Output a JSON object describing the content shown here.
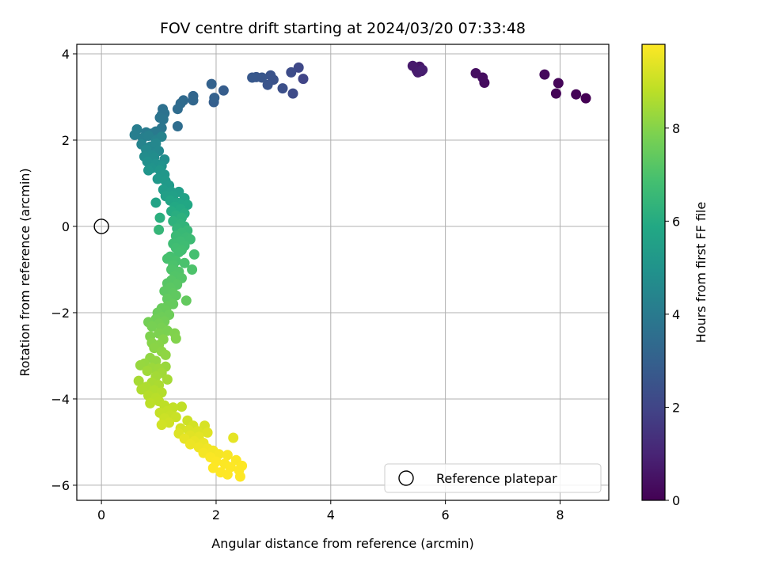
{
  "chart_data": {
    "type": "scatter",
    "title": "FOV centre drift starting at 2024/03/20 07:33:48",
    "xlabel": "Angular distance from reference (arcmin)",
    "ylabel": "Rotation from reference (arcmin)",
    "xlim": [
      -0.43,
      8.85
    ],
    "ylim": [
      -6.35,
      4.22
    ],
    "xticks": [
      0,
      2,
      4,
      6,
      8
    ],
    "yticks": [
      -6,
      -4,
      -2,
      0,
      2,
      4
    ],
    "grid": true,
    "colormap": "viridis",
    "colorbar": {
      "label": "Hours from first FF file",
      "range": [
        0,
        9.8
      ],
      "ticks": [
        0,
        2,
        4,
        6,
        8
      ]
    },
    "reference": {
      "label": "Reference platepar",
      "x": 0,
      "y": 0,
      "marker": "open-circle"
    },
    "legend": {
      "position": "lower-right",
      "entries": [
        "Reference platepar"
      ]
    },
    "points": [
      [
        8.45,
        2.97,
        0.0
      ],
      [
        8.28,
        3.06,
        0.05
      ],
      [
        7.93,
        3.08,
        0.1
      ],
      [
        7.97,
        3.32,
        0.15
      ],
      [
        7.73,
        3.52,
        0.2
      ],
      [
        6.68,
        3.33,
        0.3
      ],
      [
        6.65,
        3.45,
        0.35
      ],
      [
        6.53,
        3.55,
        0.4
      ],
      [
        5.58,
        3.6,
        0.55
      ],
      [
        5.55,
        3.7,
        0.6
      ],
      [
        5.5,
        3.62,
        0.65
      ],
      [
        5.43,
        3.72,
        0.7
      ],
      [
        5.52,
        3.57,
        0.75
      ],
      [
        5.6,
        3.63,
        0.8
      ],
      [
        3.52,
        3.42,
        2.0
      ],
      [
        3.44,
        3.68,
        2.1
      ],
      [
        3.34,
        3.08,
        2.2
      ],
      [
        3.31,
        3.57,
        2.25
      ],
      [
        3.16,
        3.2,
        2.35
      ],
      [
        3.0,
        3.4,
        2.45
      ],
      [
        2.95,
        3.5,
        2.5
      ],
      [
        2.9,
        3.28,
        2.55
      ],
      [
        2.8,
        3.45,
        2.6
      ],
      [
        2.7,
        3.46,
        2.65
      ],
      [
        2.63,
        3.45,
        2.7
      ],
      [
        2.13,
        3.15,
        2.85
      ],
      [
        1.96,
        2.88,
        2.95
      ],
      [
        1.97,
        2.98,
        3.0
      ],
      [
        1.92,
        3.3,
        3.05
      ],
      [
        1.6,
        3.02,
        3.2
      ],
      [
        1.6,
        2.92,
        3.25
      ],
      [
        1.43,
        2.92,
        3.35
      ],
      [
        1.38,
        2.85,
        3.4
      ],
      [
        1.33,
        2.72,
        3.45
      ],
      [
        1.33,
        2.32,
        3.5
      ],
      [
        1.07,
        2.72,
        3.6
      ],
      [
        1.05,
        2.58,
        3.65
      ],
      [
        1.1,
        2.62,
        3.7
      ],
      [
        1.02,
        2.52,
        3.75
      ],
      [
        1.08,
        2.48,
        3.8
      ],
      [
        1.05,
        2.28,
        3.85
      ],
      [
        0.95,
        2.2,
        3.95
      ],
      [
        0.88,
        2.15,
        4.0
      ],
      [
        0.78,
        2.18,
        4.05
      ],
      [
        0.62,
        2.25,
        4.1
      ],
      [
        0.58,
        2.12,
        4.15
      ],
      [
        0.72,
        2.05,
        4.2
      ],
      [
        0.82,
        2.1,
        4.25
      ],
      [
        0.95,
        2.0,
        4.3
      ],
      [
        1.05,
        2.08,
        4.35
      ],
      [
        0.7,
        1.9,
        4.4
      ],
      [
        0.85,
        1.85,
        4.45
      ],
      [
        0.95,
        1.92,
        4.5
      ],
      [
        1.0,
        1.75,
        4.55
      ],
      [
        0.78,
        1.78,
        4.6
      ],
      [
        0.88,
        1.65,
        4.65
      ],
      [
        0.75,
        1.62,
        4.7
      ],
      [
        0.92,
        1.6,
        4.75
      ],
      [
        1.1,
        1.55,
        4.8
      ],
      [
        0.8,
        1.5,
        4.85
      ],
      [
        0.95,
        1.45,
        4.9
      ],
      [
        1.05,
        1.4,
        4.95
      ],
      [
        0.88,
        1.35,
        5.0
      ],
      [
        0.82,
        1.3,
        5.05
      ],
      [
        1.02,
        1.3,
        5.1
      ],
      [
        1.1,
        1.2,
        5.15
      ],
      [
        0.98,
        1.1,
        5.2
      ],
      [
        1.12,
        1.05,
        5.25
      ],
      [
        1.18,
        0.95,
        5.3
      ],
      [
        1.08,
        0.85,
        5.35
      ],
      [
        1.22,
        0.8,
        5.4
      ],
      [
        1.35,
        0.8,
        5.45
      ],
      [
        1.12,
        0.7,
        5.5
      ],
      [
        1.25,
        0.7,
        5.55
      ],
      [
        1.45,
        0.65,
        5.6
      ],
      [
        0.95,
        0.55,
        5.65
      ],
      [
        1.2,
        0.6,
        5.7
      ],
      [
        1.32,
        0.55,
        5.75
      ],
      [
        1.4,
        0.5,
        5.8
      ],
      [
        1.5,
        0.5,
        5.85
      ],
      [
        1.28,
        0.45,
        5.9
      ],
      [
        1.38,
        0.4,
        5.95
      ],
      [
        1.22,
        0.35,
        6.0
      ],
      [
        1.45,
        0.3,
        6.05
      ],
      [
        1.3,
        0.25,
        6.1
      ],
      [
        1.02,
        0.2,
        6.15
      ],
      [
        1.4,
        0.2,
        6.2
      ],
      [
        1.25,
        0.12,
        6.25
      ],
      [
        1.38,
        0.05,
        6.3
      ],
      [
        1.45,
        0.0,
        6.35
      ],
      [
        1.32,
        -0.05,
        6.4
      ],
      [
        1.0,
        -0.08,
        6.45
      ],
      [
        1.5,
        -0.1,
        6.5
      ],
      [
        1.4,
        -0.15,
        6.55
      ],
      [
        1.3,
        -0.22,
        6.6
      ],
      [
        1.48,
        -0.25,
        6.62
      ],
      [
        1.55,
        -0.3,
        6.65
      ],
      [
        1.38,
        -0.35,
        6.68
      ],
      [
        1.25,
        -0.4,
        6.7
      ],
      [
        1.45,
        -0.45,
        6.73
      ],
      [
        1.3,
        -0.5,
        6.76
      ],
      [
        1.4,
        -0.55,
        6.79
      ],
      [
        1.35,
        -0.6,
        6.82
      ],
      [
        1.62,
        -0.65,
        6.85
      ],
      [
        1.2,
        -0.7,
        6.88
      ],
      [
        1.15,
        -0.75,
        6.91
      ],
      [
        1.3,
        -0.8,
        6.94
      ],
      [
        1.45,
        -0.85,
        6.97
      ],
      [
        1.25,
        -0.9,
        7.0
      ],
      [
        1.58,
        -1.0,
        7.03
      ],
      [
        1.22,
        -1.0,
        7.06
      ],
      [
        1.35,
        -1.05,
        7.09
      ],
      [
        1.28,
        -1.15,
        7.12
      ],
      [
        1.4,
        -1.2,
        7.15
      ],
      [
        1.22,
        -1.25,
        7.18
      ],
      [
        1.15,
        -1.32,
        7.21
      ],
      [
        1.32,
        -1.35,
        7.24
      ],
      [
        1.2,
        -1.42,
        7.27
      ],
      [
        1.1,
        -1.5,
        7.3
      ],
      [
        1.25,
        -1.55,
        7.33
      ],
      [
        1.3,
        -1.6,
        7.36
      ],
      [
        1.15,
        -1.68,
        7.39
      ],
      [
        1.48,
        -1.72,
        7.42
      ],
      [
        1.25,
        -1.8,
        7.45
      ],
      [
        1.15,
        -1.85,
        7.48
      ],
      [
        1.05,
        -1.9,
        7.51
      ],
      [
        1.12,
        -1.95,
        7.54
      ],
      [
        0.98,
        -2.0,
        7.57
      ],
      [
        1.18,
        -2.05,
        7.6
      ],
      [
        1.05,
        -2.1,
        7.63
      ],
      [
        0.95,
        -2.15,
        7.66
      ],
      [
        1.1,
        -2.2,
        7.69
      ],
      [
        0.82,
        -2.22,
        7.72
      ],
      [
        1.0,
        -2.25,
        7.75
      ],
      [
        0.88,
        -2.32,
        7.78
      ],
      [
        1.05,
        -2.35,
        7.81
      ],
      [
        1.15,
        -2.42,
        7.84
      ],
      [
        1.0,
        -2.48,
        7.87
      ],
      [
        0.85,
        -2.55,
        7.9
      ],
      [
        1.28,
        -2.48,
        7.93
      ],
      [
        1.3,
        -2.6,
        7.96
      ],
      [
        1.08,
        -2.62,
        7.99
      ],
      [
        0.88,
        -2.7,
        8.02
      ],
      [
        1.0,
        -2.75,
        8.05
      ],
      [
        0.92,
        -2.82,
        8.08
      ],
      [
        1.05,
        -2.9,
        8.11
      ],
      [
        1.12,
        -2.98,
        8.14
      ],
      [
        0.85,
        -3.05,
        8.17
      ],
      [
        0.95,
        -3.12,
        8.2
      ],
      [
        0.75,
        -3.18,
        8.23
      ],
      [
        0.68,
        -3.22,
        8.26
      ],
      [
        1.12,
        -3.25,
        8.29
      ],
      [
        0.88,
        -3.28,
        8.32
      ],
      [
        1.0,
        -3.3,
        8.35
      ],
      [
        0.8,
        -3.35,
        8.38
      ],
      [
        1.05,
        -3.4,
        8.41
      ],
      [
        0.95,
        -3.48,
        8.44
      ],
      [
        1.15,
        -3.55,
        8.47
      ],
      [
        0.65,
        -3.58,
        8.5
      ],
      [
        0.88,
        -3.62,
        8.53
      ],
      [
        1.0,
        -3.68,
        8.56
      ],
      [
        0.78,
        -3.72,
        8.59
      ],
      [
        0.7,
        -3.78,
        8.62
      ],
      [
        0.92,
        -3.8,
        8.65
      ],
      [
        1.05,
        -3.85,
        8.68
      ],
      [
        0.82,
        -3.92,
        8.71
      ],
      [
        0.95,
        -3.98,
        8.74
      ],
      [
        1.0,
        -4.05,
        8.77
      ],
      [
        0.85,
        -4.1,
        8.8
      ],
      [
        1.1,
        -4.15,
        8.83
      ],
      [
        1.4,
        -4.18,
        8.86
      ],
      [
        1.25,
        -4.2,
        8.89
      ],
      [
        1.15,
        -4.28,
        8.92
      ],
      [
        1.02,
        -4.32,
        8.95
      ],
      [
        1.2,
        -4.38,
        8.98
      ],
      [
        1.3,
        -4.42,
        9.01
      ],
      [
        1.1,
        -4.45,
        9.04
      ],
      [
        1.5,
        -4.5,
        9.07
      ],
      [
        1.18,
        -4.55,
        9.1
      ],
      [
        1.05,
        -4.6,
        9.13
      ],
      [
        1.6,
        -4.62,
        9.16
      ],
      [
        1.38,
        -4.68,
        9.19
      ],
      [
        1.8,
        -4.62,
        9.22
      ],
      [
        1.52,
        -4.72,
        9.25
      ],
      [
        1.68,
        -4.75,
        9.28
      ],
      [
        1.35,
        -4.8,
        9.31
      ],
      [
        1.85,
        -4.78,
        9.34
      ],
      [
        1.55,
        -4.85,
        9.37
      ],
      [
        1.7,
        -4.88,
        9.4
      ],
      [
        2.3,
        -4.9,
        9.43
      ],
      [
        1.45,
        -4.92,
        9.46
      ],
      [
        1.62,
        -4.98,
        9.49
      ],
      [
        1.78,
        -5.02,
        9.52
      ],
      [
        1.55,
        -5.05,
        9.55
      ],
      [
        1.7,
        -5.12,
        9.58
      ],
      [
        1.85,
        -5.15,
        9.61
      ],
      [
        1.95,
        -5.2,
        9.64
      ],
      [
        1.78,
        -5.25,
        9.67
      ],
      [
        2.05,
        -5.28,
        9.7
      ],
      [
        2.2,
        -5.3,
        9.73
      ],
      [
        1.9,
        -5.35,
        9.75
      ],
      [
        2.35,
        -5.42,
        9.77
      ],
      [
        2.0,
        -5.45,
        9.78
      ],
      [
        2.15,
        -5.5,
        9.79
      ],
      [
        2.45,
        -5.55,
        9.8
      ],
      [
        2.25,
        -5.58,
        9.8
      ],
      [
        1.95,
        -5.6,
        9.8
      ],
      [
        2.4,
        -5.65,
        9.8
      ],
      [
        2.08,
        -5.7,
        9.8
      ],
      [
        2.2,
        -5.75,
        9.8
      ],
      [
        2.42,
        -5.8,
        9.8
      ]
    ]
  }
}
